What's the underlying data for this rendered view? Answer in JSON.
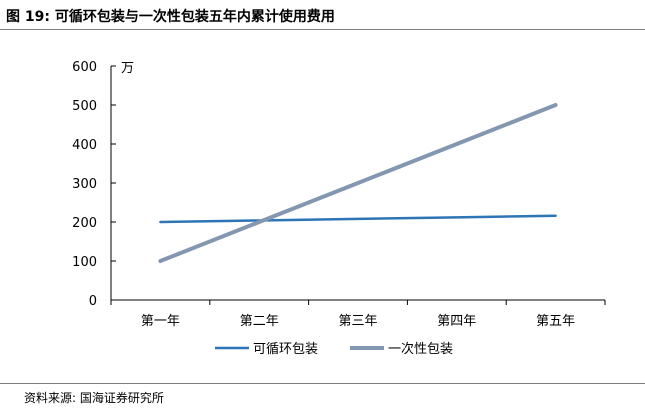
{
  "caption": "图 19:  可循环包装与一次性包装五年内累计使用费用",
  "source": "资料来源:  国海证券研究所",
  "chart_data": {
    "type": "line",
    "title": "",
    "xlabel": "",
    "ylabel": "万",
    "ylim": [
      0,
      600
    ],
    "yticks": [
      0,
      100,
      200,
      300,
      400,
      500,
      600
    ],
    "grid": false,
    "legend_position": "bottom",
    "categories": [
      "第一年",
      "第二年",
      "第三年",
      "第四年",
      "第五年"
    ],
    "series": [
      {
        "name": "可循环包装",
        "color": "#2e75b6",
        "values": [
          200,
          204,
          208,
          212,
          216
        ]
      },
      {
        "name": "一次性包装",
        "color": "#8497b0",
        "values": [
          100,
          200,
          300,
          400,
          500
        ]
      }
    ]
  }
}
